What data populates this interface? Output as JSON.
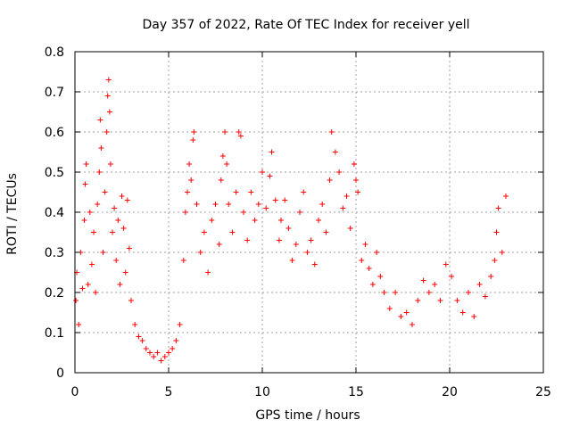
{
  "chart_data": {
    "type": "scatter",
    "title": "Day 357 of 2022, Rate Of TEC Index for receiver yell",
    "xlabel": "GPS time / hours",
    "ylabel": "ROTI / TECUs",
    "xlim": [
      0,
      25
    ],
    "ylim": [
      0,
      0.8
    ],
    "xticks": [
      0,
      5,
      10,
      15,
      20,
      25
    ],
    "yticks": [
      0,
      0.1,
      0.2,
      0.3,
      0.4,
      0.5,
      0.6,
      0.7,
      0.8
    ],
    "xtick_labels": [
      "0",
      "5",
      "10",
      "15",
      "20",
      "25"
    ],
    "ytick_labels": [
      "0",
      "0.1",
      "0.2",
      "0.3",
      "0.4",
      "0.5",
      "0.6",
      "0.7",
      "0.8"
    ],
    "grid": true,
    "marker": "+",
    "series_color": "#ff0000",
    "series": [
      {
        "name": "ROTI",
        "points": [
          [
            0.05,
            0.18
          ],
          [
            0.1,
            0.25
          ],
          [
            0.2,
            0.12
          ],
          [
            0.3,
            0.3
          ],
          [
            0.4,
            0.21
          ],
          [
            0.5,
            0.38
          ],
          [
            0.55,
            0.47
          ],
          [
            0.6,
            0.52
          ],
          [
            0.7,
            0.22
          ],
          [
            0.8,
            0.4
          ],
          [
            0.9,
            0.27
          ],
          [
            1.0,
            0.35
          ],
          [
            1.1,
            0.2
          ],
          [
            1.2,
            0.42
          ],
          [
            1.3,
            0.5
          ],
          [
            1.35,
            0.63
          ],
          [
            1.4,
            0.56
          ],
          [
            1.5,
            0.3
          ],
          [
            1.6,
            0.45
          ],
          [
            1.7,
            0.6
          ],
          [
            1.75,
            0.69
          ],
          [
            1.8,
            0.73
          ],
          [
            1.85,
            0.65
          ],
          [
            1.9,
            0.52
          ],
          [
            2.0,
            0.35
          ],
          [
            2.1,
            0.41
          ],
          [
            2.2,
            0.28
          ],
          [
            2.3,
            0.38
          ],
          [
            2.4,
            0.22
          ],
          [
            2.5,
            0.44
          ],
          [
            2.6,
            0.36
          ],
          [
            2.7,
            0.25
          ],
          [
            2.8,
            0.43
          ],
          [
            2.9,
            0.31
          ],
          [
            3.0,
            0.18
          ],
          [
            3.2,
            0.12
          ],
          [
            3.4,
            0.09
          ],
          [
            3.6,
            0.08
          ],
          [
            3.8,
            0.06
          ],
          [
            4.0,
            0.05
          ],
          [
            4.2,
            0.04
          ],
          [
            4.4,
            0.05
          ],
          [
            4.6,
            0.03
          ],
          [
            4.8,
            0.04
          ],
          [
            5.0,
            0.05
          ],
          [
            5.2,
            0.06
          ],
          [
            5.4,
            0.08
          ],
          [
            5.6,
            0.12
          ],
          [
            5.8,
            0.28
          ],
          [
            5.9,
            0.4
          ],
          [
            6.0,
            0.45
          ],
          [
            6.1,
            0.52
          ],
          [
            6.2,
            0.48
          ],
          [
            6.3,
            0.58
          ],
          [
            6.35,
            0.6
          ],
          [
            6.5,
            0.42
          ],
          [
            6.7,
            0.3
          ],
          [
            6.9,
            0.35
          ],
          [
            7.1,
            0.25
          ],
          [
            7.3,
            0.38
          ],
          [
            7.5,
            0.42
          ],
          [
            7.7,
            0.32
          ],
          [
            7.8,
            0.48
          ],
          [
            7.9,
            0.54
          ],
          [
            8.0,
            0.6
          ],
          [
            8.1,
            0.52
          ],
          [
            8.2,
            0.42
          ],
          [
            8.4,
            0.35
          ],
          [
            8.6,
            0.45
          ],
          [
            8.75,
            0.6
          ],
          [
            8.85,
            0.59
          ],
          [
            9.0,
            0.4
          ],
          [
            9.2,
            0.33
          ],
          [
            9.4,
            0.45
          ],
          [
            9.6,
            0.38
          ],
          [
            9.8,
            0.42
          ],
          [
            10.0,
            0.5
          ],
          [
            10.2,
            0.41
          ],
          [
            10.4,
            0.49
          ],
          [
            10.5,
            0.55
          ],
          [
            10.7,
            0.43
          ],
          [
            10.9,
            0.33
          ],
          [
            11.0,
            0.38
          ],
          [
            11.2,
            0.43
          ],
          [
            11.4,
            0.36
          ],
          [
            11.6,
            0.28
          ],
          [
            11.8,
            0.32
          ],
          [
            12.0,
            0.4
          ],
          [
            12.2,
            0.45
          ],
          [
            12.4,
            0.3
          ],
          [
            12.6,
            0.33
          ],
          [
            12.8,
            0.27
          ],
          [
            13.0,
            0.38
          ],
          [
            13.2,
            0.42
          ],
          [
            13.4,
            0.35
          ],
          [
            13.6,
            0.48
          ],
          [
            13.7,
            0.6
          ],
          [
            13.9,
            0.55
          ],
          [
            14.1,
            0.5
          ],
          [
            14.3,
            0.41
          ],
          [
            14.5,
            0.44
          ],
          [
            14.7,
            0.36
          ],
          [
            14.9,
            0.52
          ],
          [
            15.0,
            0.48
          ],
          [
            15.1,
            0.45
          ],
          [
            15.3,
            0.28
          ],
          [
            15.5,
            0.32
          ],
          [
            15.7,
            0.26
          ],
          [
            15.9,
            0.22
          ],
          [
            16.1,
            0.3
          ],
          [
            16.3,
            0.24
          ],
          [
            16.5,
            0.2
          ],
          [
            16.8,
            0.16
          ],
          [
            17.1,
            0.2
          ],
          [
            17.4,
            0.14
          ],
          [
            17.7,
            0.15
          ],
          [
            18.0,
            0.12
          ],
          [
            18.3,
            0.18
          ],
          [
            18.6,
            0.23
          ],
          [
            18.9,
            0.2
          ],
          [
            19.2,
            0.22
          ],
          [
            19.5,
            0.18
          ],
          [
            19.8,
            0.27
          ],
          [
            20.1,
            0.24
          ],
          [
            20.4,
            0.18
          ],
          [
            20.7,
            0.15
          ],
          [
            21.0,
            0.2
          ],
          [
            21.3,
            0.14
          ],
          [
            21.6,
            0.22
          ],
          [
            21.9,
            0.19
          ],
          [
            22.2,
            0.24
          ],
          [
            22.4,
            0.28
          ],
          [
            22.5,
            0.35
          ],
          [
            22.6,
            0.41
          ],
          [
            22.8,
            0.3
          ],
          [
            23.0,
            0.44
          ]
        ]
      }
    ]
  }
}
